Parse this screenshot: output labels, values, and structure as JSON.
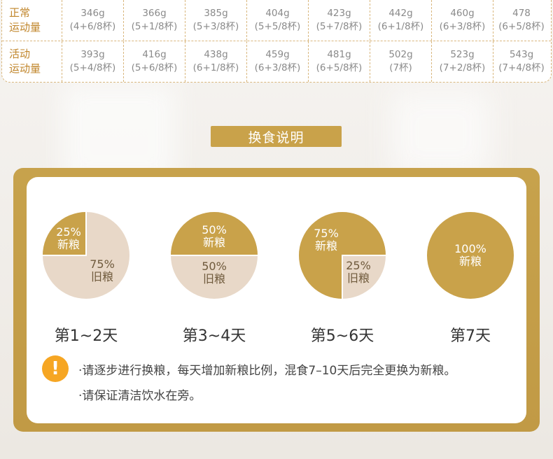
{
  "feeding_table": {
    "rows": [
      {
        "label": [
          "正常",
          "运动量"
        ],
        "cells": [
          {
            "g": "346g",
            "cups": "(4+6/8杯)"
          },
          {
            "g": "366g",
            "cups": "(5+1/8杯)"
          },
          {
            "g": "385g",
            "cups": "(5+3/8杯)"
          },
          {
            "g": "404g",
            "cups": "(5+5/8杯)"
          },
          {
            "g": "423g",
            "cups": "(5+7/8杯)"
          },
          {
            "g": "442g",
            "cups": "(6+1/8杯)"
          },
          {
            "g": "460g",
            "cups": "(6+3/8杯)"
          },
          {
            "g": "478",
            "cups": "(6+5/8杯)"
          }
        ]
      },
      {
        "label": [
          "活动",
          "运动量"
        ],
        "cells": [
          {
            "g": "393g",
            "cups": "(5+4/8杯)"
          },
          {
            "g": "416g",
            "cups": "(5+6/8杯)"
          },
          {
            "g": "438g",
            "cups": "(6+1/8杯)"
          },
          {
            "g": "459g",
            "cups": "(6+3/8杯)"
          },
          {
            "g": "481g",
            "cups": "(6+5/8杯)"
          },
          {
            "g": "502g",
            "cups": "(7杯)"
          },
          {
            "g": "523g",
            "cups": "(7+2/8杯)"
          },
          {
            "g": "543g",
            "cups": "(7+4/8杯)"
          }
        ]
      }
    ]
  },
  "section_title": "换食说明",
  "stages": [
    {
      "new_pct": "25%",
      "new_label": "新粮",
      "old_pct": "75%",
      "old_label": "旧粮",
      "new_fraction": 0.25,
      "day": "第1~2天"
    },
    {
      "new_pct": "50%",
      "new_label": "新粮",
      "old_pct": "50%",
      "old_label": "旧粮",
      "new_fraction": 0.5,
      "day": "第3~4天"
    },
    {
      "new_pct": "75%",
      "new_label": "新粮",
      "old_pct": "25%",
      "old_label": "旧粮",
      "new_fraction": 0.75,
      "day": "第5~6天"
    },
    {
      "new_pct": "100%",
      "new_label": "新粮",
      "old_pct": "",
      "old_label": "",
      "new_fraction": 1.0,
      "day": "第7天"
    }
  ],
  "notes": [
    "·请逐步进行换粮，每天增加新粮比例，混食7–10天后完全更换为新粮。",
    "·请保证清洁饮水在旁。"
  ],
  "colors": {
    "gold": "#c9a24a",
    "beige": "#e8d8c8",
    "warning": "#f6a623",
    "table_label": "#c0852a"
  },
  "icons": {
    "warning": "exclamation-circle-icon"
  }
}
